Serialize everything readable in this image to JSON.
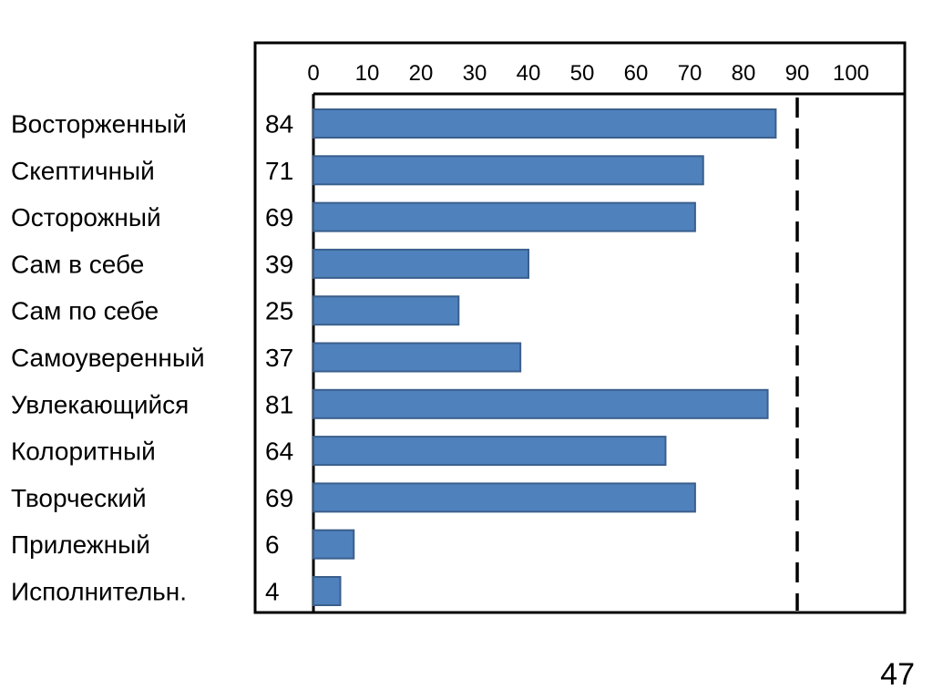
{
  "chart_data": {
    "type": "bar",
    "orientation": "horizontal",
    "categories": [
      "Восторженный",
      "Скептичный",
      "Осторожный",
      "Сам в себе",
      "Сам по себе",
      "Самоуверенный",
      "Увлекающийся",
      "Колоритный",
      "Творческий",
      "Прилежный",
      "Исполнительн."
    ],
    "values": [
      84,
      71,
      69,
      39,
      25,
      37,
      81,
      64,
      69,
      6,
      4
    ],
    "bar_lengths": [
      86,
      72.5,
      71,
      40,
      27,
      38.5,
      84.5,
      65.5,
      71,
      7.5,
      5
    ],
    "xlim": [
      0,
      110
    ],
    "xticks": [
      "0",
      "10",
      "20",
      "30",
      "40",
      "50",
      "60",
      "70",
      "80",
      "90",
      "100"
    ],
    "xtick_values": [
      0,
      10,
      20,
      30,
      40,
      50,
      60,
      70,
      80,
      90,
      100
    ],
    "reference_line": 90,
    "value_labels_shown": true,
    "grid": false,
    "legend": "none",
    "colors": {
      "bar": "#4f81bd",
      "bar_border": "#3a5f8c",
      "frame": "#000000",
      "text": "#000000"
    }
  },
  "page_number": "47"
}
